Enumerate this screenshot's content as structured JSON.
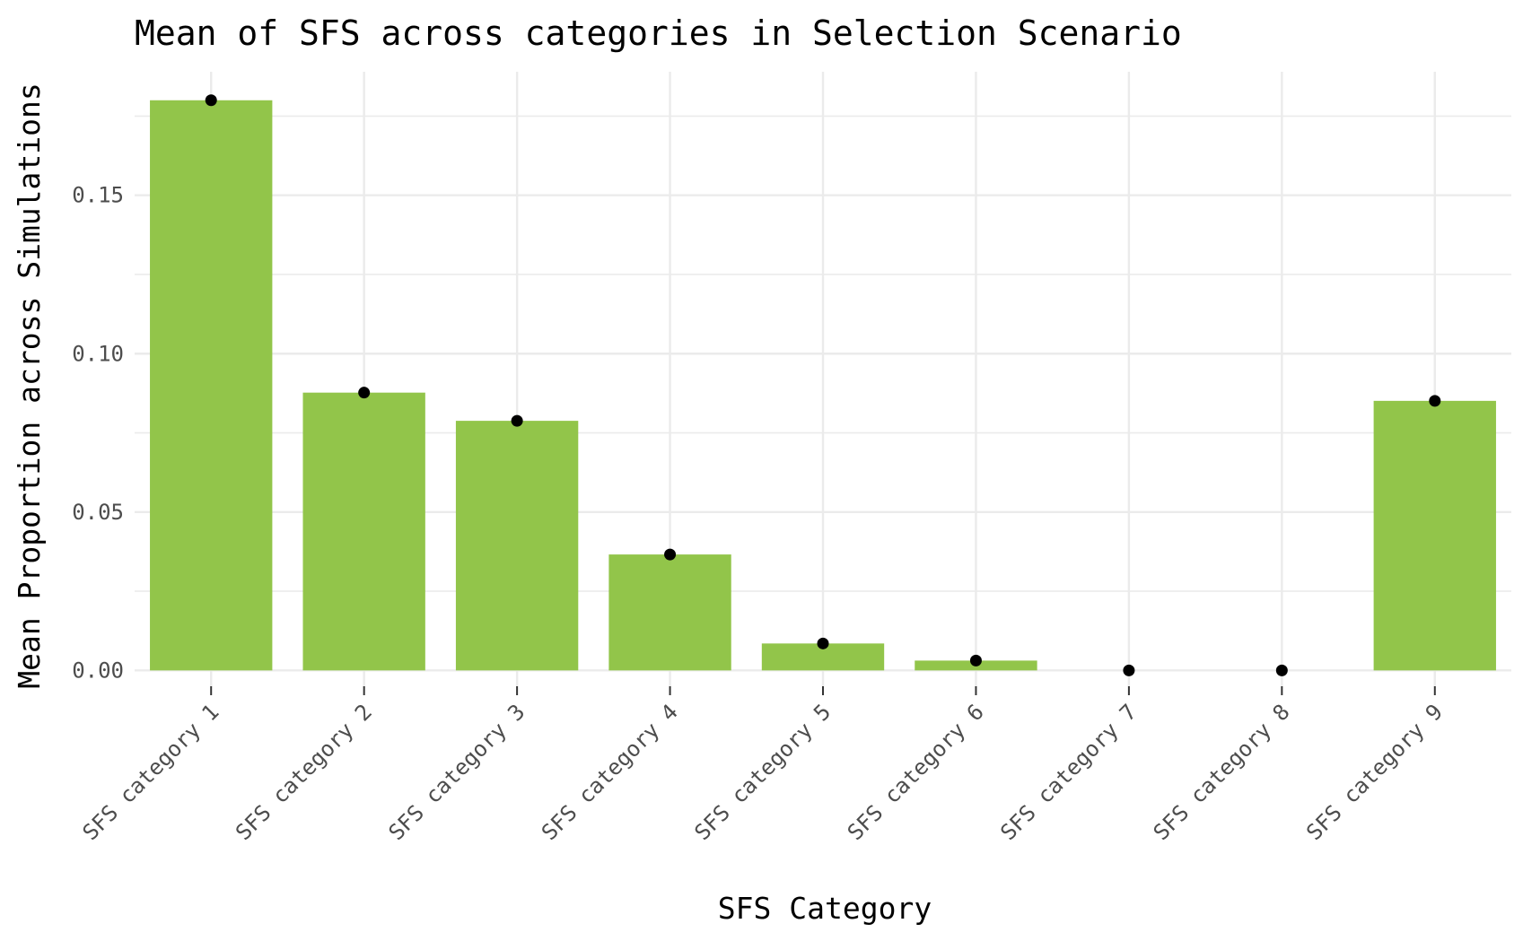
{
  "chart_data": {
    "type": "bar",
    "title": "Mean of SFS across categories in Selection Scenario",
    "xlabel": "SFS Category",
    "ylabel": "Mean Proportion across Simulations",
    "categories": [
      "SFS category 1",
      "SFS category 2",
      "SFS category 3",
      "SFS category 4",
      "SFS category 5",
      "SFS category 6",
      "SFS category 7",
      "SFS category 8",
      "SFS category 9"
    ],
    "values": [
      0.18,
      0.0877,
      0.0788,
      0.0366,
      0.0085,
      0.0031,
      0.0,
      0.0,
      0.0851
    ],
    "ylim": [
      -0.005,
      0.189
    ],
    "yticks": [
      0.0,
      0.05,
      0.1,
      0.15
    ],
    "ytick_labels": [
      "0.00",
      "0.05",
      "0.10",
      "0.15"
    ],
    "grid": true,
    "legend": "none",
    "colors": {
      "bar": "#92c54a",
      "point": "#000000",
      "grid": "#ebebeb"
    }
  }
}
